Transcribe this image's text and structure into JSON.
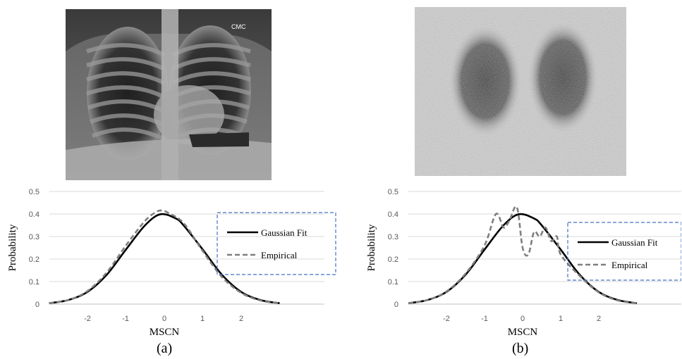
{
  "panels": [
    {
      "label": "(a)"
    },
    {
      "label": "(b)"
    }
  ],
  "colors": {
    "gaussian": "#000000",
    "empirical": "#7f7f7f",
    "legend_border": "#4472c4",
    "grid": "#d9d9d9"
  },
  "chart_data": [
    {
      "type": "line",
      "xlabel": "MSCN",
      "ylabel": "Probability",
      "ylim": [
        0,
        0.5
      ],
      "xlim": [
        -3,
        3
      ],
      "xticks": [
        "-2",
        "-1",
        "0",
        "1",
        "2"
      ],
      "yticks": [
        "0",
        "0.1",
        "0.2",
        "0.3",
        "0.4",
        "0.5"
      ],
      "grid": true,
      "legend": "right",
      "series": [
        {
          "name": "Gaussian Fit",
          "style": "solid",
          "x": [
            -3.0,
            -2.5,
            -2.0,
            -1.5,
            -1.0,
            -0.5,
            -0.1,
            0.3,
            0.5,
            1.0,
            1.5,
            2.0,
            2.5,
            3.0
          ],
          "y": [
            0.004,
            0.018,
            0.054,
            0.13,
            0.242,
            0.35,
            0.399,
            0.38,
            0.35,
            0.242,
            0.13,
            0.054,
            0.018,
            0.004
          ]
        },
        {
          "name": "Empirical",
          "style": "dashed",
          "x": [
            -3.0,
            -2.5,
            -2.0,
            -1.5,
            -1.0,
            -0.5,
            -0.2,
            -0.05,
            0.1,
            0.5,
            1.0,
            1.5,
            2.0,
            2.5,
            3.0
          ],
          "y": [
            0.004,
            0.018,
            0.058,
            0.14,
            0.26,
            0.37,
            0.41,
            0.415,
            0.405,
            0.36,
            0.235,
            0.12,
            0.05,
            0.016,
            0.004
          ]
        }
      ]
    },
    {
      "type": "line",
      "xlabel": "MSCN",
      "ylabel": "Probability",
      "ylim": [
        0,
        0.5
      ],
      "xlim": [
        -3,
        3
      ],
      "xticks": [
        "-2",
        "-1",
        "0",
        "1",
        "2"
      ],
      "yticks": [
        "0",
        "0.1",
        "0.2",
        "0.3",
        "0.4",
        "0.5"
      ],
      "grid": true,
      "legend": "right",
      "series": [
        {
          "name": "Gaussian Fit",
          "style": "solid",
          "x": [
            -3.0,
            -2.5,
            -2.0,
            -1.5,
            -1.0,
            -0.5,
            -0.1,
            0.3,
            0.5,
            1.0,
            1.5,
            2.0,
            2.5,
            3.0
          ],
          "y": [
            0.004,
            0.018,
            0.054,
            0.13,
            0.242,
            0.35,
            0.399,
            0.38,
            0.35,
            0.242,
            0.13,
            0.054,
            0.018,
            0.004
          ]
        },
        {
          "name": "Empirical",
          "style": "dashed",
          "x": [
            -3.0,
            -2.5,
            -2.0,
            -1.5,
            -1.0,
            -0.7,
            -0.5,
            -0.35,
            -0.15,
            0.0,
            0.15,
            0.3,
            0.45,
            0.6,
            0.75,
            0.9,
            1.0,
            1.5,
            2.0,
            2.5,
            3.0
          ],
          "y": [
            0.004,
            0.018,
            0.056,
            0.135,
            0.26,
            0.4,
            0.34,
            0.37,
            0.43,
            0.25,
            0.22,
            0.32,
            0.3,
            0.34,
            0.28,
            0.3,
            0.22,
            0.125,
            0.052,
            0.016,
            0.004
          ]
        }
      ]
    }
  ]
}
